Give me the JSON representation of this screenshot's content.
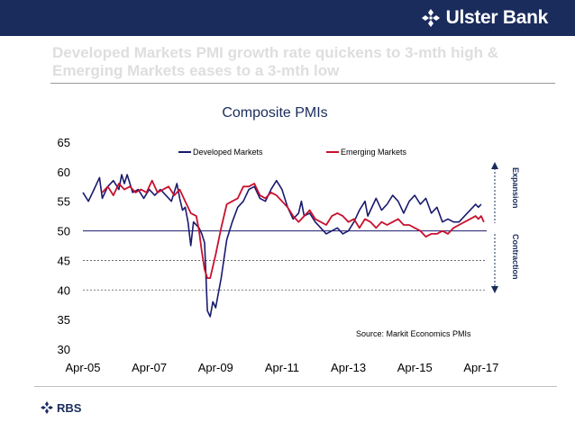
{
  "header": {
    "brand_name": "Ulster Bank",
    "colors": {
      "bar": "#1a2c5c",
      "text": "#ffffff"
    }
  },
  "slide": {
    "title": "Developed Markets PMI growth rate quickens to 3-mth high & Emerging Markets eases to a 3-mth low"
  },
  "footer": {
    "logo_text": "RBS"
  },
  "chart_data": {
    "type": "line",
    "title": "Composite PMIs",
    "xlabel": "",
    "ylabel": "",
    "ylim": [
      30,
      65
    ],
    "yticks": [
      30,
      35,
      40,
      45,
      50,
      55,
      60,
      65
    ],
    "xlim": [
      "2005-04",
      "2017-06"
    ],
    "xticks": [
      "Apr-05",
      "Apr-07",
      "Apr-09",
      "Apr-11",
      "Apr-13",
      "Apr-15",
      "Apr-17"
    ],
    "grid": false,
    "legend": "top",
    "reference_line": 50,
    "dotted_lines": [
      45,
      40
    ],
    "side_labels": {
      "upper": "Expansion",
      "lower": "Contraction"
    },
    "source": "Source: Markit Economics PMIs",
    "series": [
      {
        "name": "Developed Markets",
        "color": "#1a1a6e",
        "points": [
          [
            "2005-04",
            56.5
          ],
          [
            "2005-06",
            55.0
          ],
          [
            "2005-08",
            57.0
          ],
          [
            "2005-10",
            59.0
          ],
          [
            "2005-11",
            55.5
          ],
          [
            "2006-01",
            57.5
          ],
          [
            "2006-03",
            58.5
          ],
          [
            "2006-05",
            57.0
          ],
          [
            "2006-06",
            59.5
          ],
          [
            "2006-07",
            58.0
          ],
          [
            "2006-08",
            59.5
          ],
          [
            "2006-10",
            56.5
          ],
          [
            "2006-12",
            57.0
          ],
          [
            "2007-02",
            55.5
          ],
          [
            "2007-04",
            57.0
          ],
          [
            "2007-06",
            56.0
          ],
          [
            "2007-08",
            57.0
          ],
          [
            "2007-10",
            56.0
          ],
          [
            "2007-12",
            55.0
          ],
          [
            "2008-02",
            58.0
          ],
          [
            "2008-03",
            55.5
          ],
          [
            "2008-04",
            53.5
          ],
          [
            "2008-05",
            54.0
          ],
          [
            "2008-06",
            51.5
          ],
          [
            "2008-07",
            47.5
          ],
          [
            "2008-08",
            51.5
          ],
          [
            "2008-10",
            50.5
          ],
          [
            "2008-11",
            49.5
          ],
          [
            "2008-12",
            48.0
          ],
          [
            "2009-01",
            36.5
          ],
          [
            "2009-02",
            35.5
          ],
          [
            "2009-03",
            38.0
          ],
          [
            "2009-04",
            37.0
          ],
          [
            "2009-06",
            42.0
          ],
          [
            "2009-08",
            48.5
          ],
          [
            "2009-10",
            51.5
          ],
          [
            "2009-12",
            54.0
          ],
          [
            "2010-02",
            55.0
          ],
          [
            "2010-04",
            57.0
          ],
          [
            "2010-06",
            57.5
          ],
          [
            "2010-08",
            55.5
          ],
          [
            "2010-10",
            55.0
          ],
          [
            "2010-12",
            57.0
          ],
          [
            "2011-02",
            58.5
          ],
          [
            "2011-04",
            57.0
          ],
          [
            "2011-06",
            54.0
          ],
          [
            "2011-08",
            52.0
          ],
          [
            "2011-10",
            53.0
          ],
          [
            "2011-11",
            55.0
          ],
          [
            "2011-12",
            52.5
          ],
          [
            "2012-02",
            53.0
          ],
          [
            "2012-04",
            51.5
          ],
          [
            "2012-06",
            50.5
          ],
          [
            "2012-08",
            49.5
          ],
          [
            "2012-10",
            50.0
          ],
          [
            "2012-12",
            50.5
          ],
          [
            "2013-02",
            49.5
          ],
          [
            "2013-04",
            50.0
          ],
          [
            "2013-06",
            51.5
          ],
          [
            "2013-08",
            53.5
          ],
          [
            "2013-10",
            55.0
          ],
          [
            "2013-11",
            52.5
          ],
          [
            "2014-02",
            55.5
          ],
          [
            "2014-04",
            53.5
          ],
          [
            "2014-06",
            54.5
          ],
          [
            "2014-08",
            56.0
          ],
          [
            "2014-10",
            55.0
          ],
          [
            "2014-12",
            53.0
          ],
          [
            "2015-02",
            55.0
          ],
          [
            "2015-04",
            56.0
          ],
          [
            "2015-06",
            54.5
          ],
          [
            "2015-08",
            55.5
          ],
          [
            "2015-10",
            53.0
          ],
          [
            "2015-12",
            54.0
          ],
          [
            "2016-02",
            51.5
          ],
          [
            "2016-04",
            52.0
          ],
          [
            "2016-06",
            51.5
          ],
          [
            "2016-08",
            51.5
          ],
          [
            "2016-10",
            52.5
          ],
          [
            "2016-12",
            53.5
          ],
          [
            "2017-01",
            54.0
          ],
          [
            "2017-02",
            54.5
          ],
          [
            "2017-03",
            54.0
          ],
          [
            "2017-04",
            54.5
          ]
        ]
      },
      {
        "name": "Emerging Markets",
        "color": "#c8102e",
        "points": [
          [
            "2005-11",
            56.5
          ],
          [
            "2006-01",
            57.5
          ],
          [
            "2006-03",
            56.0
          ],
          [
            "2006-05",
            58.0
          ],
          [
            "2006-07",
            57.0
          ],
          [
            "2006-09",
            57.5
          ],
          [
            "2006-11",
            56.5
          ],
          [
            "2007-01",
            57.0
          ],
          [
            "2007-03",
            56.5
          ],
          [
            "2007-05",
            58.5
          ],
          [
            "2007-07",
            56.5
          ],
          [
            "2007-09",
            57.0
          ],
          [
            "2007-11",
            57.5
          ],
          [
            "2008-01",
            56.0
          ],
          [
            "2008-03",
            57.0
          ],
          [
            "2008-05",
            55.0
          ],
          [
            "2008-07",
            53.0
          ],
          [
            "2008-09",
            52.5
          ],
          [
            "2008-10",
            50.0
          ],
          [
            "2008-11",
            46.5
          ],
          [
            "2008-12",
            43.5
          ],
          [
            "2009-01",
            42.0
          ],
          [
            "2009-02",
            42.0
          ],
          [
            "2009-04",
            46.0
          ],
          [
            "2009-06",
            50.5
          ],
          [
            "2009-08",
            54.5
          ],
          [
            "2009-10",
            55.0
          ],
          [
            "2009-12",
            55.5
          ],
          [
            "2010-02",
            57.5
          ],
          [
            "2010-04",
            57.5
          ],
          [
            "2010-06",
            58.0
          ],
          [
            "2010-08",
            56.0
          ],
          [
            "2010-10",
            55.5
          ],
          [
            "2010-12",
            56.5
          ],
          [
            "2011-02",
            56.0
          ],
          [
            "2011-04",
            55.0
          ],
          [
            "2011-06",
            54.0
          ],
          [
            "2011-08",
            52.5
          ],
          [
            "2011-10",
            51.5
          ],
          [
            "2011-12",
            52.5
          ],
          [
            "2012-02",
            53.5
          ],
          [
            "2012-04",
            52.0
          ],
          [
            "2012-06",
            51.5
          ],
          [
            "2012-08",
            51.0
          ],
          [
            "2012-10",
            52.5
          ],
          [
            "2012-12",
            53.0
          ],
          [
            "2013-02",
            52.5
          ],
          [
            "2013-04",
            51.5
          ],
          [
            "2013-06",
            52.0
          ],
          [
            "2013-08",
            50.5
          ],
          [
            "2013-10",
            52.0
          ],
          [
            "2013-12",
            51.5
          ],
          [
            "2014-02",
            50.5
          ],
          [
            "2014-04",
            51.5
          ],
          [
            "2014-06",
            51.0
          ],
          [
            "2014-08",
            51.5
          ],
          [
            "2014-10",
            52.0
          ],
          [
            "2014-12",
            51.0
          ],
          [
            "2015-02",
            51.0
          ],
          [
            "2015-04",
            50.5
          ],
          [
            "2015-06",
            50.0
          ],
          [
            "2015-08",
            49.0
          ],
          [
            "2015-10",
            49.5
          ],
          [
            "2015-12",
            49.5
          ],
          [
            "2016-02",
            50.0
          ],
          [
            "2016-04",
            49.5
          ],
          [
            "2016-06",
            50.5
          ],
          [
            "2016-08",
            51.0
          ],
          [
            "2016-10",
            51.5
          ],
          [
            "2016-12",
            52.0
          ],
          [
            "2017-02",
            52.5
          ],
          [
            "2017-03",
            52.0
          ],
          [
            "2017-04",
            52.5
          ],
          [
            "2017-05",
            51.5
          ]
        ]
      }
    ]
  }
}
